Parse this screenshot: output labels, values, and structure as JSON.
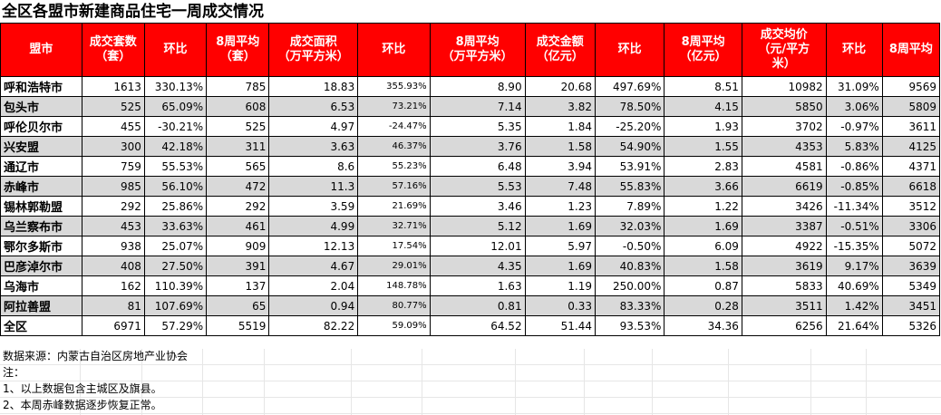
{
  "title": "全区各盟市新建商品住宅一周成交情况",
  "headers": [
    "盟市",
    "成交套数\n（套）",
    "环比",
    "8周平均\n（套）",
    "成交面积\n（万平方米）",
    "环比",
    "8周平均\n（万平方米）",
    "成交金额\n（亿元）",
    "环比",
    "8周平均\n（亿元）",
    "成交均价\n（元/平方\n米）",
    "环比",
    "8周平均"
  ],
  "rows": [
    [
      "呼和浩特市",
      "1613",
      "330.13%",
      "785",
      "18.83",
      "355.93%",
      "8.90",
      "20.68",
      "497.69%",
      "8.51",
      "10982",
      "31.09%",
      "9569"
    ],
    [
      "包头市",
      "525",
      "65.09%",
      "608",
      "6.53",
      "73.21%",
      "7.14",
      "3.82",
      "78.50%",
      "4.15",
      "5850",
      "3.06%",
      "5809"
    ],
    [
      "呼伦贝尔市",
      "455",
      "-30.21%",
      "525",
      "4.97",
      "-24.47%",
      "5.35",
      "1.84",
      "-25.20%",
      "1.93",
      "3702",
      "-0.97%",
      "3611"
    ],
    [
      "兴安盟",
      "300",
      "42.18%",
      "311",
      "3.63",
      "46.37%",
      "3.76",
      "1.58",
      "54.90%",
      "1.55",
      "4353",
      "5.83%",
      "4125"
    ],
    [
      "通辽市",
      "759",
      "55.53%",
      "565",
      "8.6",
      "55.23%",
      "6.48",
      "3.94",
      "53.91%",
      "2.83",
      "4581",
      "-0.86%",
      "4371"
    ],
    [
      "赤峰市",
      "985",
      "56.10%",
      "472",
      "11.3",
      "57.16%",
      "5.53",
      "7.48",
      "55.83%",
      "3.66",
      "6619",
      "-0.85%",
      "6618"
    ],
    [
      "锡林郭勒盟",
      "292",
      "25.86%",
      "292",
      "3.59",
      "21.69%",
      "3.46",
      "1.23",
      "7.89%",
      "1.22",
      "3426",
      "-11.34%",
      "3512"
    ],
    [
      "乌兰察布市",
      "453",
      "33.63%",
      "461",
      "4.99",
      "32.71%",
      "5.12",
      "1.69",
      "32.03%",
      "1.69",
      "3387",
      "-0.51%",
      "3306"
    ],
    [
      "鄂尔多斯市",
      "938",
      "25.07%",
      "909",
      "12.13",
      "17.54%",
      "12.01",
      "5.97",
      "-0.50%",
      "6.09",
      "4922",
      "-15.35%",
      "5072"
    ],
    [
      "巴彦淖尔市",
      "408",
      "27.50%",
      "391",
      "4.67",
      "29.01%",
      "4.35",
      "1.69",
      "40.83%",
      "1.58",
      "3619",
      "9.17%",
      "3639"
    ],
    [
      "乌海市",
      "162",
      "110.39%",
      "137",
      "2.04",
      "148.78%",
      "1.63",
      "1.19",
      "250.00%",
      "0.87",
      "5833",
      "40.69%",
      "5349"
    ],
    [
      "阿拉善盟",
      "81",
      "107.69%",
      "65",
      "0.94",
      "80.77%",
      "0.81",
      "0.33",
      "83.33%",
      "0.28",
      "3511",
      "1.42%",
      "3451"
    ],
    [
      "全区",
      "6971",
      "57.29%",
      "5519",
      "82.22",
      "59.09%",
      "64.52",
      "51.44",
      "93.53%",
      "34.36",
      "6256",
      "21.64%",
      "5326"
    ]
  ],
  "notes": [
    "数据来源：内蒙古自治区房地产业协会",
    "注：",
    "1、以上数据包含主城区及旗县。",
    "2、本周赤峰数据逐步恢复正常。"
  ],
  "colors": {
    "header_bg": "#ff0000",
    "header_text": "#ffffff",
    "stripe": "#d9d9d9"
  }
}
